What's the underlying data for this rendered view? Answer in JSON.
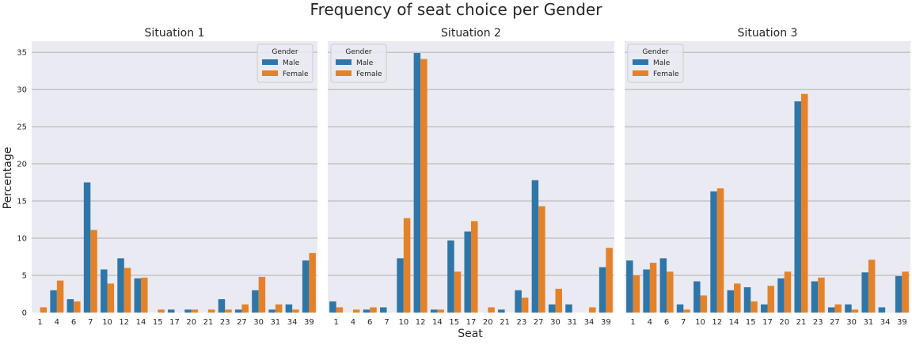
{
  "title": "Frequency of seat choice per Gender",
  "xlabel": "Seat",
  "ylabel": "Percentage",
  "legend_title": "Gender",
  "colors": {
    "Male": "#2f76a8",
    "Female": "#e4822a",
    "panel_bg": "#eaeaf2",
    "grid": "#b0b0b0"
  },
  "chart_data": [
    {
      "type": "bar",
      "title": "Situation 1",
      "categories": [
        "1",
        "4",
        "6",
        "7",
        "10",
        "12",
        "14",
        "15",
        "17",
        "20",
        "21",
        "23",
        "27",
        "30",
        "31",
        "34",
        "39"
      ],
      "series": [
        {
          "name": "Male",
          "values": [
            0.0,
            3.0,
            1.8,
            17.5,
            5.8,
            7.3,
            4.6,
            0.0,
            0.4,
            0.4,
            0.0,
            1.8,
            0.4,
            3.0,
            0.4,
            1.1,
            7.0
          ]
        },
        {
          "name": "Female",
          "values": [
            0.7,
            4.3,
            1.5,
            11.1,
            3.9,
            6.0,
            4.7,
            0.4,
            0.0,
            0.4,
            0.4,
            0.4,
            1.1,
            4.8,
            1.1,
            0.4,
            8.0
          ]
        }
      ],
      "ylim": [
        0,
        36.5
      ],
      "yticks": [
        0,
        5,
        10,
        15,
        20,
        25,
        30,
        35
      ],
      "legend_position": "top-right"
    },
    {
      "type": "bar",
      "title": "Situation 2",
      "categories": [
        "1",
        "4",
        "6",
        "7",
        "10",
        "12",
        "14",
        "15",
        "17",
        "20",
        "21",
        "23",
        "27",
        "30",
        "31",
        "34",
        "39"
      ],
      "series": [
        {
          "name": "Male",
          "values": [
            1.5,
            0.0,
            0.4,
            0.7,
            7.3,
            34.9,
            0.4,
            9.7,
            10.9,
            0.0,
            0.4,
            3.0,
            17.8,
            1.1,
            1.1,
            0.0,
            6.1
          ]
        },
        {
          "name": "Female",
          "values": [
            0.7,
            0.4,
            0.7,
            0.0,
            12.7,
            34.1,
            0.4,
            5.5,
            12.3,
            0.7,
            0.0,
            2.0,
            14.3,
            3.2,
            0.0,
            0.7,
            8.7
          ]
        }
      ],
      "ylim": [
        0,
        36.5
      ],
      "yticks": [
        0,
        5,
        10,
        15,
        20,
        25,
        30,
        35
      ],
      "legend_position": "top-left"
    },
    {
      "type": "bar",
      "title": "Situation 3",
      "categories": [
        "1",
        "4",
        "6",
        "7",
        "10",
        "12",
        "14",
        "15",
        "17",
        "20",
        "21",
        "23",
        "27",
        "30",
        "31",
        "34",
        "39"
      ],
      "series": [
        {
          "name": "Male",
          "values": [
            7.0,
            5.8,
            7.3,
            1.1,
            4.2,
            16.3,
            3.0,
            3.4,
            1.1,
            4.6,
            28.4,
            4.2,
            0.7,
            1.1,
            5.4,
            0.7,
            4.9
          ]
        },
        {
          "name": "Female",
          "values": [
            5.0,
            6.7,
            5.5,
            0.4,
            2.3,
            16.7,
            3.9,
            1.5,
            3.6,
            5.5,
            29.4,
            4.7,
            1.1,
            0.4,
            7.1,
            0.0,
            5.5
          ]
        }
      ],
      "ylim": [
        0,
        36.5
      ],
      "yticks": [
        0,
        5,
        10,
        15,
        20,
        25,
        30,
        35
      ],
      "legend_position": "top-left"
    }
  ]
}
